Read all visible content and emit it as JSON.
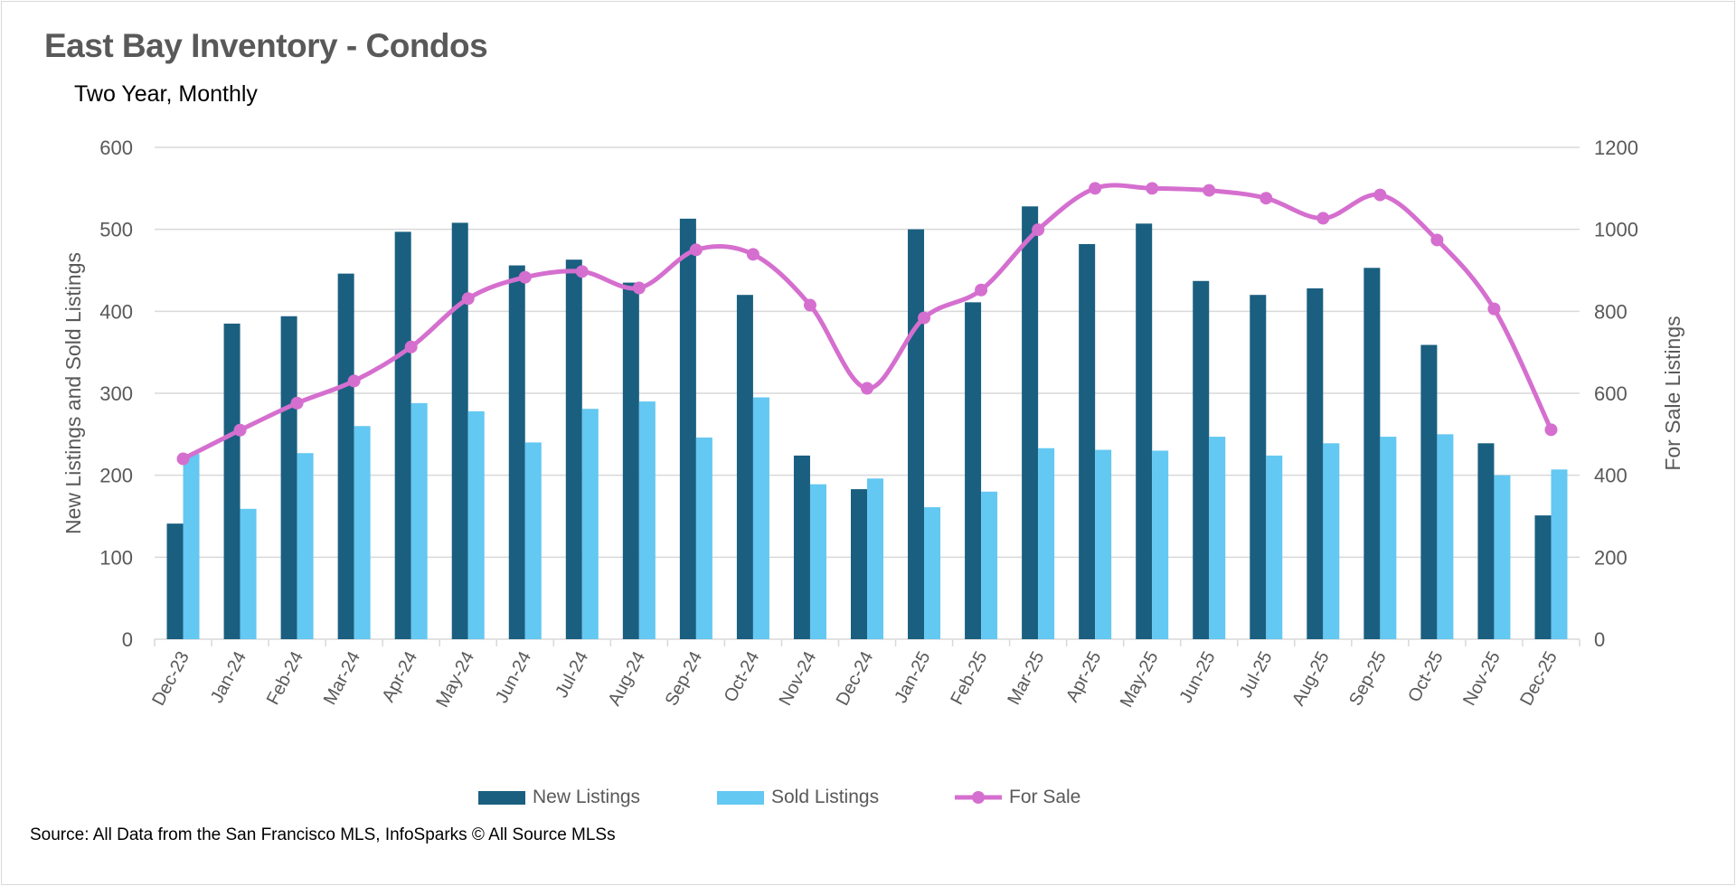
{
  "title": "East Bay Inventory - Condos",
  "subtitle": "Two Year, Monthly",
  "source": "Source: All Data from the San Francisco MLS, InfoSparks © All Source MLSs",
  "colors": {
    "new_listings": "#1a5f80",
    "sold_listings": "#63c8f2",
    "for_sale": "#d56fcf"
  },
  "chart_data": {
    "type": "bar+line",
    "categories": [
      "Dec-23",
      "Jan-24",
      "Feb-24",
      "Mar-24",
      "Apr-24",
      "May-24",
      "Jun-24",
      "Jul-24",
      "Aug-24",
      "Sep-24",
      "Oct-24",
      "Nov-24",
      "Dec-24",
      "Jan-25",
      "Feb-25",
      "Mar-25",
      "Apr-25",
      "May-25",
      "Jun-25",
      "Jul-25",
      "Aug-25",
      "Sep-25",
      "Oct-25",
      "Nov-25",
      "Dec-25"
    ],
    "series": [
      {
        "name": "New Listings",
        "type": "bar",
        "axis": "left",
        "values": [
          141,
          385,
          394,
          446,
          497,
          508,
          456,
          463,
          435,
          513,
          420,
          224,
          183,
          500,
          411,
          528,
          482,
          507,
          437,
          420,
          428,
          453,
          359,
          239,
          151
        ]
      },
      {
        "name": "Sold Listings",
        "type": "bar",
        "axis": "left",
        "values": [
          226,
          159,
          227,
          260,
          288,
          278,
          240,
          281,
          290,
          246,
          295,
          189,
          196,
          161,
          180,
          233,
          231,
          230,
          247,
          224,
          239,
          247,
          250,
          200,
          207
        ]
      },
      {
        "name": "For Sale",
        "type": "line",
        "axis": "right",
        "smoothed": true,
        "markers": true,
        "values": [
          440,
          510,
          576,
          630,
          713,
          831,
          883,
          897,
          857,
          950,
          939,
          815,
          612,
          784,
          852,
          999,
          1100,
          1100,
          1095,
          1076,
          1027,
          1084,
          974,
          806,
          511
        ]
      }
    ],
    "left_axis": {
      "label": "New Listings and Sold Listings",
      "range": [
        0,
        600
      ],
      "ticks": [
        "0",
        "100",
        "200",
        "300",
        "400",
        "500",
        "600"
      ]
    },
    "right_axis": {
      "label": "For Sale Listings",
      "range": [
        0,
        1200
      ],
      "ticks": [
        "0",
        "200",
        "400",
        "600",
        "800",
        "1000",
        "1200"
      ]
    },
    "grid": true,
    "legend": "bottom"
  }
}
